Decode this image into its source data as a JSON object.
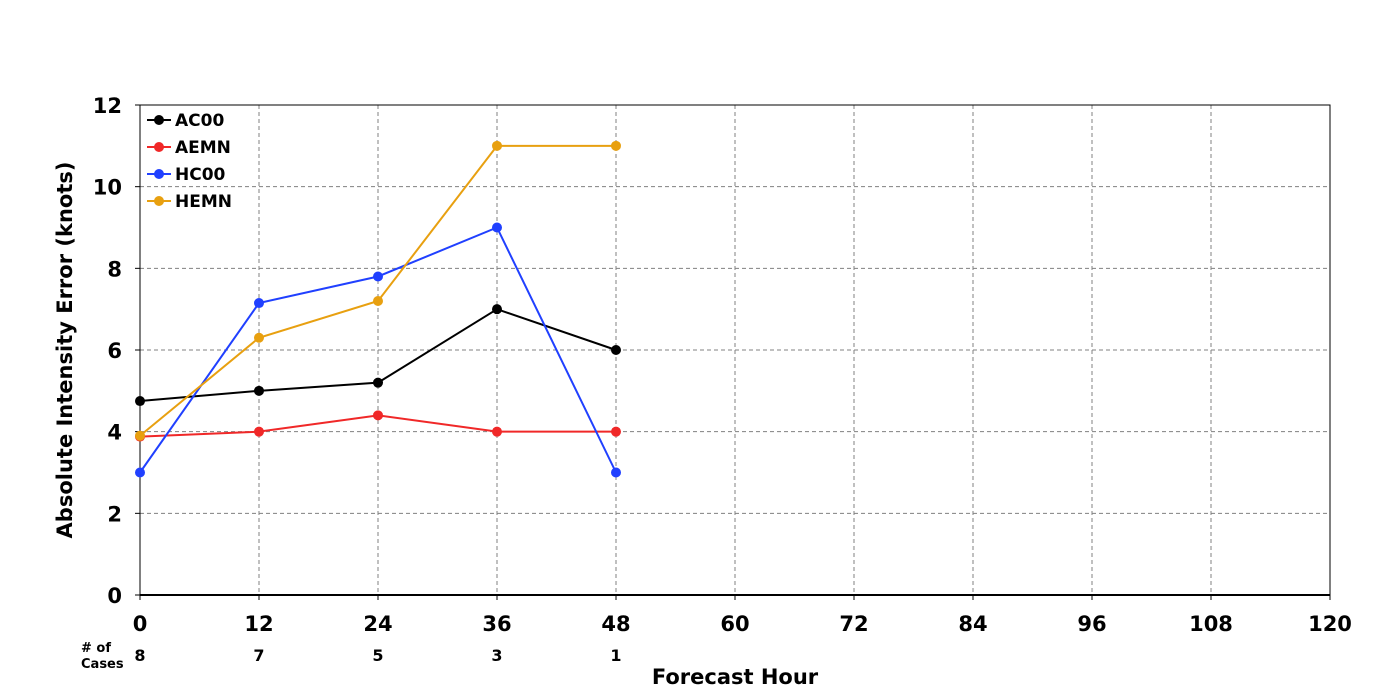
{
  "chart_data": {
    "type": "line",
    "title": "",
    "xlabel": "Forecast Hour",
    "ylabel": "Absolute Intensity Error (knots)",
    "xlim": [
      0,
      120
    ],
    "ylim": [
      0,
      12
    ],
    "x_ticks": [
      "0",
      "12",
      "24",
      "36",
      "48",
      "60",
      "72",
      "84",
      "96",
      "108",
      "120"
    ],
    "y_ticks": [
      "0",
      "2",
      "4",
      "6",
      "8",
      "10",
      "12"
    ],
    "grid": true,
    "legend_position": "top-left",
    "x": [
      0,
      12,
      24,
      36,
      48
    ],
    "series": [
      {
        "name": "AC00",
        "color": "#000000",
        "values": [
          4.75,
          5.0,
          5.2,
          7.0,
          6.0
        ]
      },
      {
        "name": "AEMN",
        "color": "#f02828",
        "values": [
          3.88,
          4.0,
          4.4,
          4.0,
          4.0
        ]
      },
      {
        "name": "HC00",
        "color": "#2040ff",
        "values": [
          3.0,
          7.15,
          7.8,
          9.0,
          3.0
        ]
      },
      {
        "name": "HEMN",
        "color": "#e8a010",
        "values": [
          3.9,
          6.3,
          7.2,
          11.0,
          11.0
        ]
      }
    ],
    "cases": {
      "label_line1": "# of",
      "label_line2": "Cases",
      "values": [
        "8",
        "7",
        "5",
        "3",
        "1"
      ]
    }
  }
}
